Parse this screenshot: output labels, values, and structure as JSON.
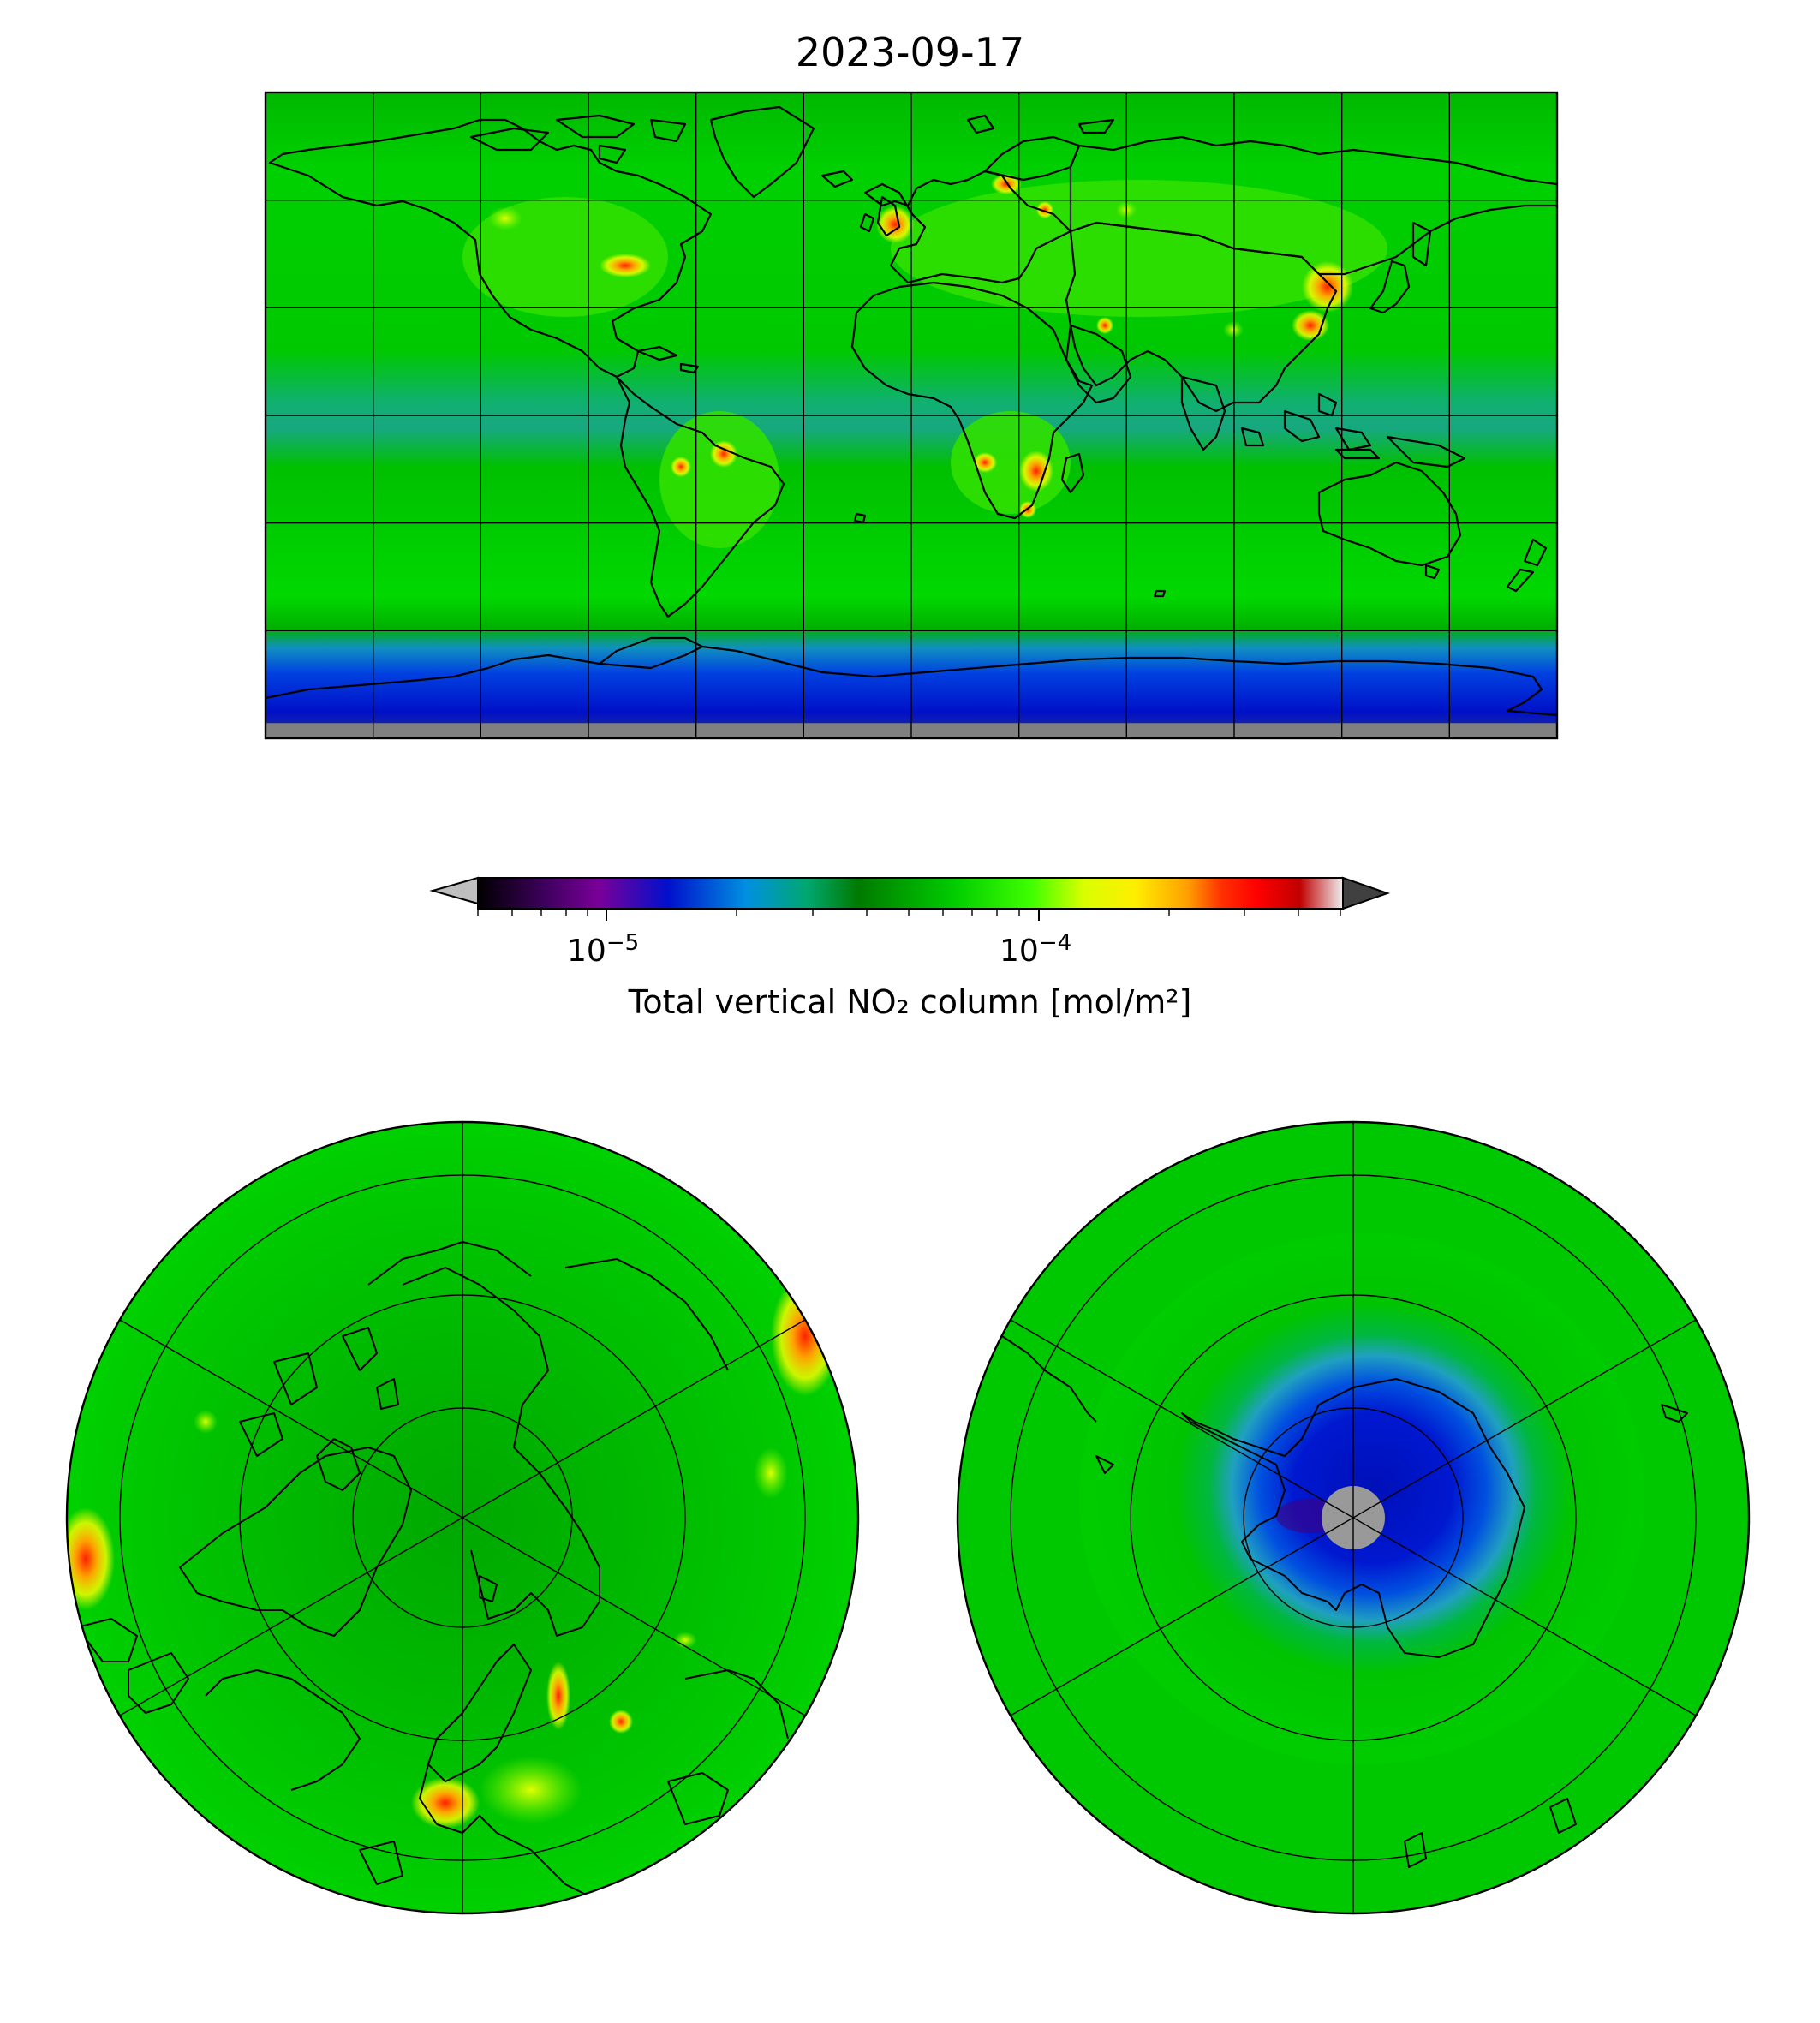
{
  "title": "2023-09-17",
  "colorbar": {
    "label": "Total vertical NO₂ column [mol/m²]",
    "scale": "log",
    "range": [
      5e-06,
      0.0005
    ],
    "extend": "both",
    "ticks": [
      {
        "value": 1e-05,
        "base": "10",
        "exp": "−5"
      },
      {
        "value": 0.0001,
        "base": "10",
        "exp": "−4"
      }
    ],
    "colors": [
      "#000000",
      "#7a0099",
      "#0010cc",
      "#0090e0",
      "#00a870",
      "#007a00",
      "#00cc00",
      "#80ff00",
      "#ffee00",
      "#ffa000",
      "#ff0000",
      "#c00000",
      "#f0f0f0"
    ],
    "under_color": "#bfbfbf",
    "over_color": "#404040"
  },
  "panels": [
    {
      "name": "global-map",
      "projection": "plate-carree",
      "gridlines": true,
      "background": "#00cc00",
      "antarctic_color": "#0018cc",
      "missing_color": "#808080"
    },
    {
      "name": "north-polar-map",
      "projection": "north-polar-stereo",
      "gridlines": true,
      "background": "#00cc00"
    },
    {
      "name": "south-polar-map",
      "projection": "south-polar-stereo",
      "gridlines": true,
      "background": "#00cc00",
      "ozone_hole_color": "#0018cc",
      "missing_color": "#999999"
    }
  ]
}
